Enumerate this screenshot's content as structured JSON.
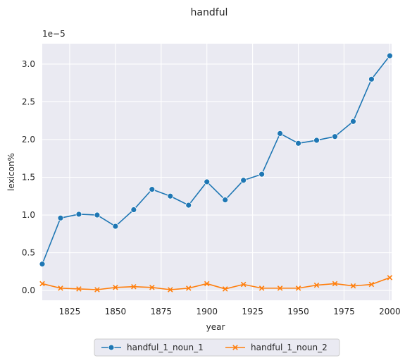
{
  "chart_data": {
    "type": "line",
    "title": "handful",
    "xlabel": "year",
    "ylabel": "lexicon%",
    "y_offset_text": "1e−5",
    "xlim": [
      1810,
      2001
    ],
    "ylim": [
      -0.13,
      3.27
    ],
    "x_ticks": [
      1825,
      1850,
      1875,
      1900,
      1925,
      1950,
      1975,
      2000
    ],
    "y_ticks": [
      0.0,
      0.5,
      1.0,
      1.5,
      2.0,
      2.5,
      3.0
    ],
    "y_tick_labels": [
      "0.0",
      "0.5",
      "1.0",
      "1.5",
      "2.0",
      "2.5",
      "3.0"
    ],
    "grid": true,
    "legend_position": "bottom-center",
    "x": [
      1810,
      1820,
      1830,
      1840,
      1850,
      1860,
      1870,
      1880,
      1890,
      1900,
      1910,
      1920,
      1930,
      1940,
      1950,
      1960,
      1970,
      1980,
      1990,
      2000
    ],
    "series": [
      {
        "name": "handful_1_noun_1",
        "color": "#1f77b4",
        "marker": "circle",
        "values": [
          0.35,
          0.96,
          1.01,
          1.0,
          0.85,
          1.07,
          1.34,
          1.25,
          1.13,
          1.44,
          1.2,
          1.46,
          1.54,
          2.08,
          1.95,
          1.99,
          2.04,
          2.24,
          2.8,
          3.11
        ]
      },
      {
        "name": "handful_1_noun_2",
        "color": "#ff7f0e",
        "marker": "x",
        "values": [
          0.09,
          0.03,
          0.02,
          0.01,
          0.04,
          0.05,
          0.04,
          0.01,
          0.03,
          0.09,
          0.02,
          0.08,
          0.03,
          0.03,
          0.03,
          0.07,
          0.09,
          0.06,
          0.08,
          0.17
        ]
      }
    ]
  }
}
